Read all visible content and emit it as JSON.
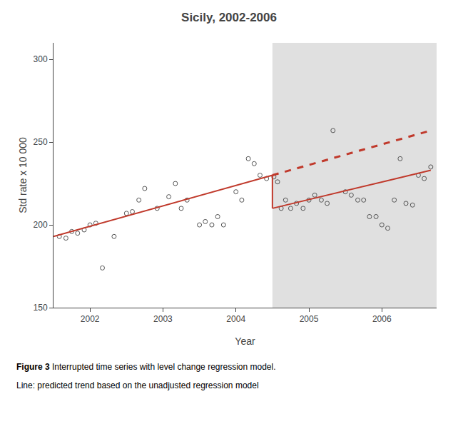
{
  "chart_data": {
    "type": "scatter",
    "title": "Sicily, 2002-2006",
    "xlabel": "Year",
    "ylabel": "Std rate x 10 000",
    "xlim": [
      2001.5,
      2006.75
    ],
    "ylim": [
      150,
      310
    ],
    "xticks": [
      2002,
      2003,
      2004,
      2005,
      2006
    ],
    "yticks": [
      150,
      200,
      250,
      300
    ],
    "grid": false,
    "shaded_region": {
      "x": [
        2004.5,
        2006.75
      ],
      "color": "#e0e0e0"
    },
    "series": [
      {
        "type": "scatter",
        "color": "#555555",
        "marker": "open circle",
        "x": [
          2001.58,
          2001.67,
          2001.75,
          2001.83,
          2001.92,
          2002.0,
          2002.08,
          2002.17,
          2002.33,
          2002.5,
          2002.58,
          2002.67,
          2002.75,
          2002.92,
          2003.08,
          2003.17,
          2003.25,
          2003.33,
          2003.5,
          2003.58,
          2003.67,
          2003.75,
          2003.83,
          2004.0,
          2004.08,
          2004.17,
          2004.25,
          2004.33,
          2004.42,
          2004.52,
          2004.57,
          2004.62,
          2004.68,
          2004.75,
          2004.83,
          2004.92,
          2005.0,
          2005.08,
          2005.17,
          2005.25,
          2005.33,
          2005.5,
          2005.58,
          2005.67,
          2005.75,
          2005.83,
          2005.92,
          2006.0,
          2006.08,
          2006.17,
          2006.25,
          2006.33,
          2006.42,
          2006.5,
          2006.58,
          2006.67
        ],
        "values": [
          193,
          192,
          196,
          195,
          197,
          200,
          201,
          174,
          193,
          207,
          208,
          215,
          222,
          210,
          217,
          225,
          210,
          215,
          200,
          202,
          200,
          205,
          200,
          220,
          215,
          240,
          237,
          230,
          228,
          229,
          226,
          210,
          215,
          210,
          213,
          210,
          215,
          218,
          215,
          213,
          257,
          220,
          218,
          215,
          215,
          205,
          205,
          200,
          198,
          215,
          240,
          213,
          212,
          230,
          228,
          235
        ]
      },
      {
        "type": "line",
        "color": "#c0392b",
        "line_style": "solid",
        "x": [
          2001.5,
          2004.5
        ],
        "values": [
          193,
          230
        ]
      },
      {
        "type": "line",
        "color": "#c0392b",
        "line_style": "solid",
        "x": [
          2004.5,
          2004.5
        ],
        "values": [
          230,
          210
        ]
      },
      {
        "type": "line",
        "color": "#c0392b",
        "line_style": "solid",
        "x": [
          2004.5,
          2006.67
        ],
        "values": [
          210,
          233
        ]
      },
      {
        "type": "line",
        "color": "#c0392b",
        "line_style": "dashed",
        "x": [
          2004.5,
          2006.67
        ],
        "values": [
          230,
          257
        ]
      }
    ],
    "caption": [
      {
        "bold": "Figure 3",
        "text": " Interrupted time series with level change regression model."
      },
      {
        "text": "Line: predicted trend based on the unadjusted regression model"
      }
    ]
  }
}
